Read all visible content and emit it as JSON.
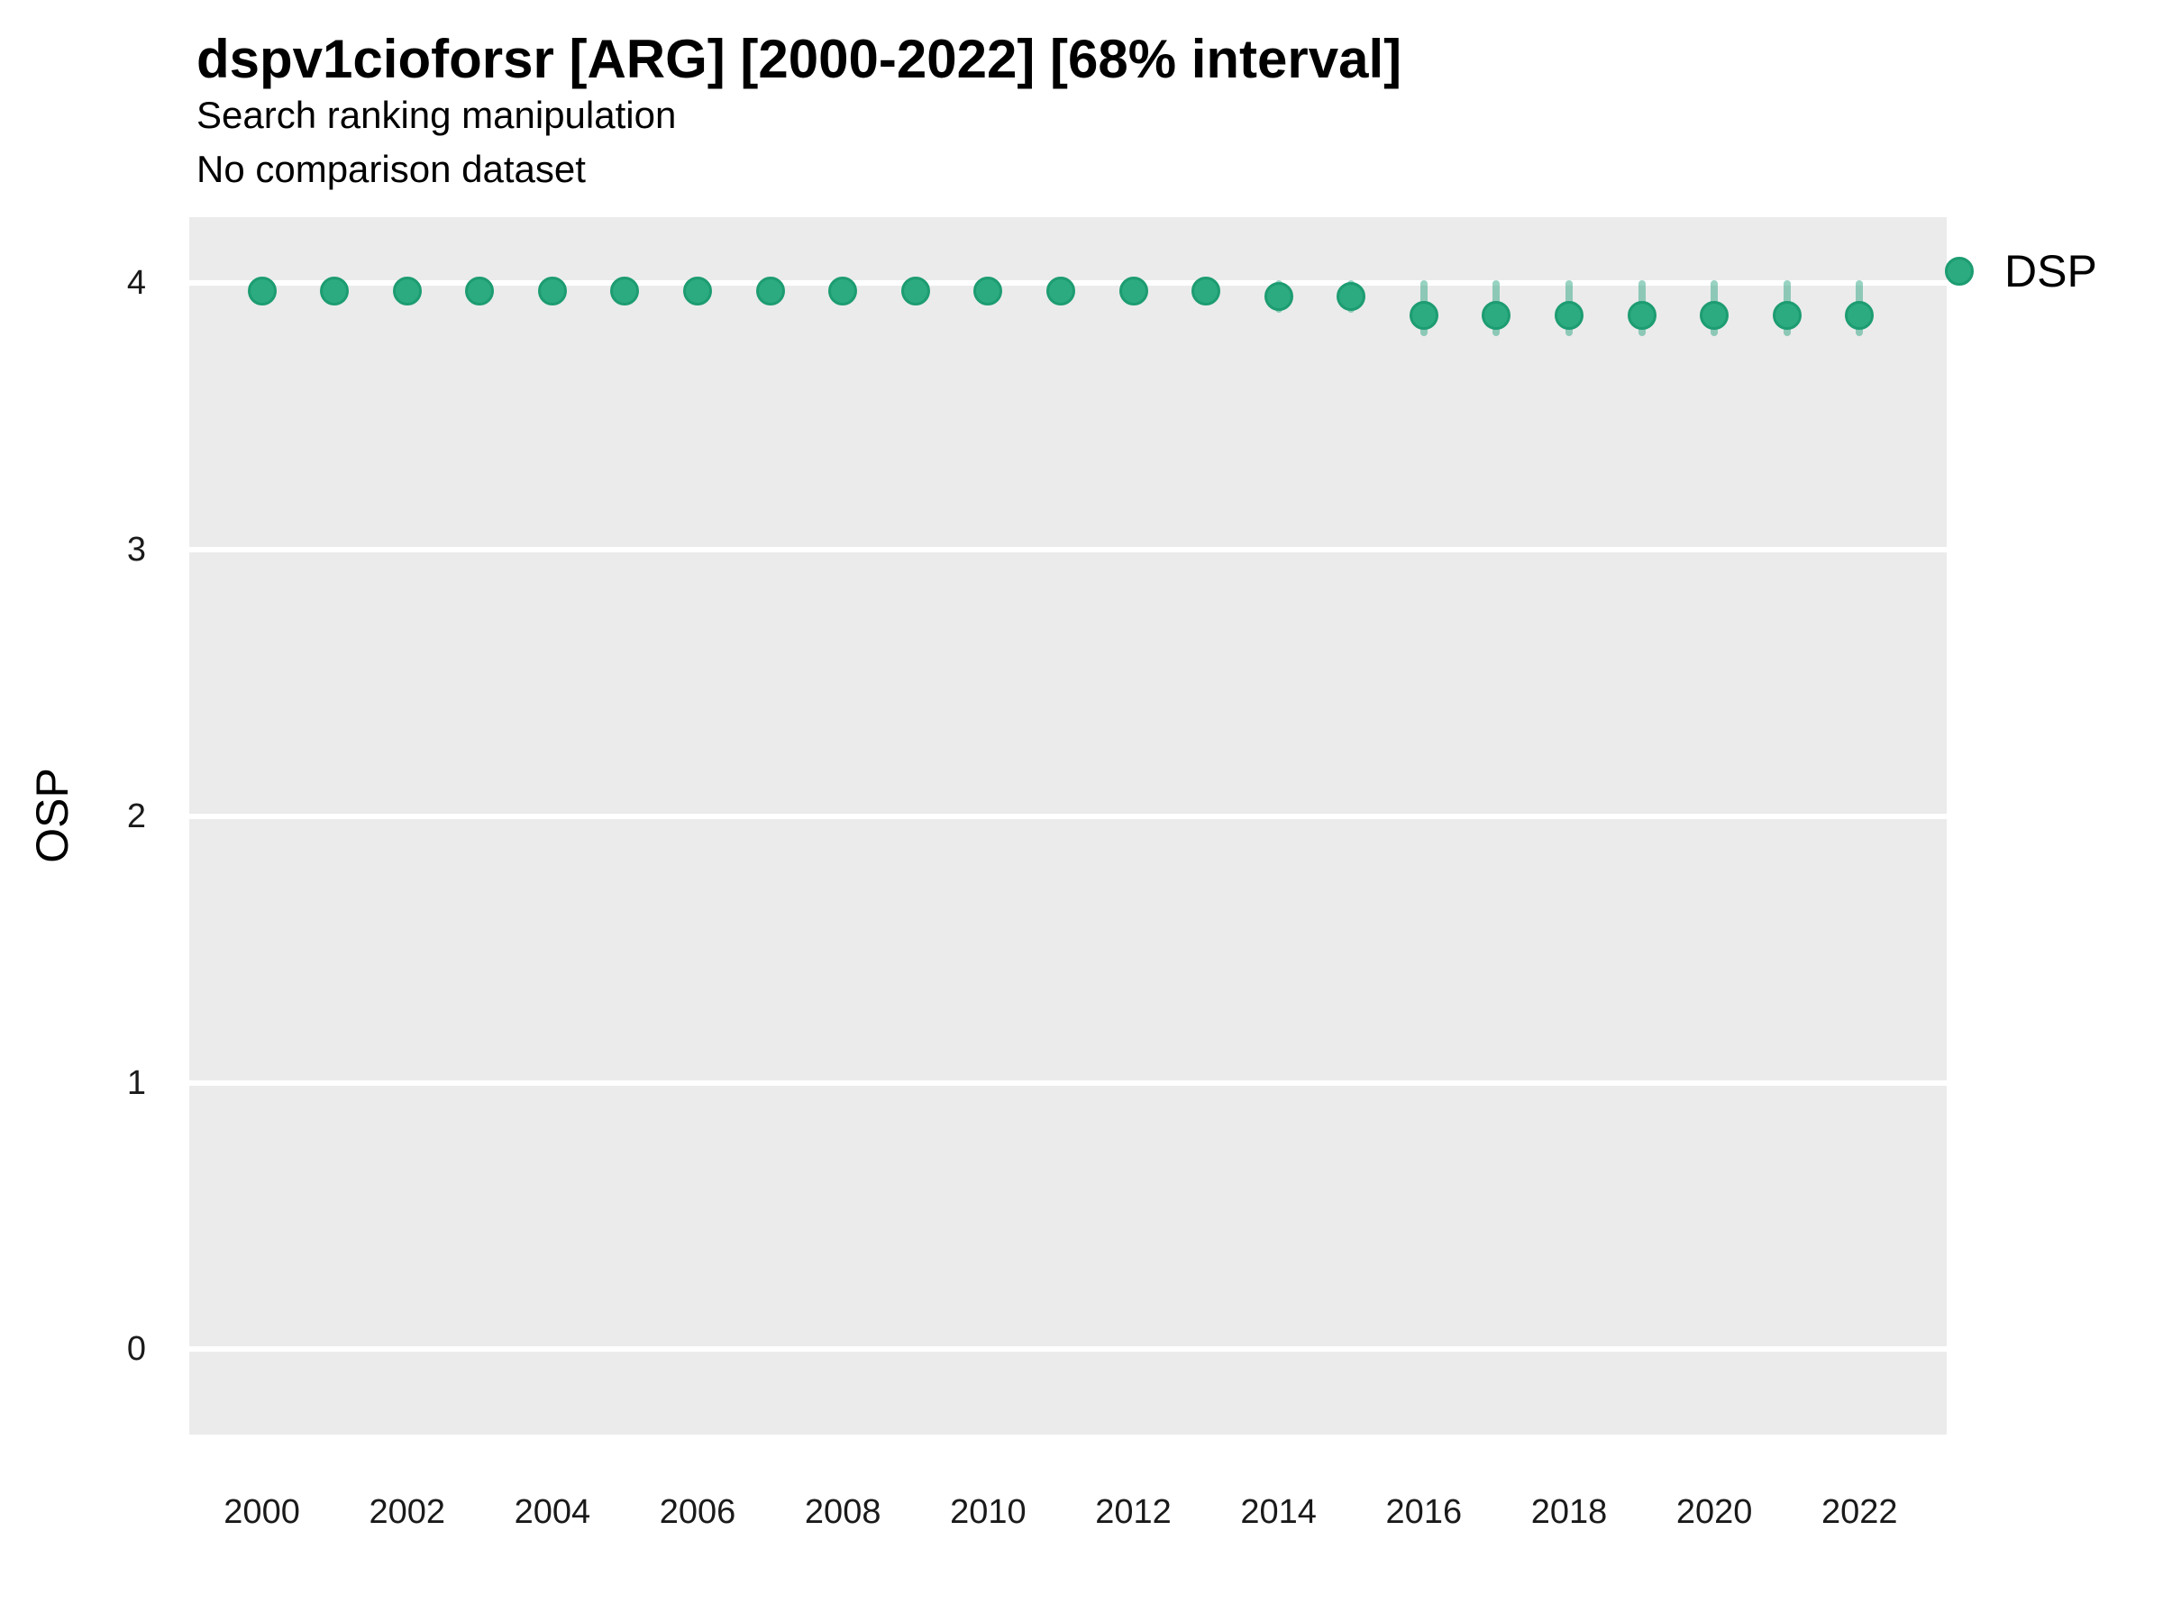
{
  "header": {
    "title": "dspv1cioforsr [ARG] [2000-2022] [68% interval]",
    "subtitle1": "Search ranking manipulation",
    "subtitle2": "No comparison dataset"
  },
  "legend": {
    "position": "right-top",
    "items": [
      {
        "label": "DSP",
        "marker": "circle-icon"
      }
    ]
  },
  "axes": {
    "ylabel": "OSP",
    "xlabel": "",
    "yticks": [
      0,
      1,
      2,
      3,
      4
    ],
    "xticks": [
      2000,
      2002,
      2004,
      2006,
      2008,
      2010,
      2012,
      2014,
      2016,
      2018,
      2020,
      2022
    ]
  },
  "colors": {
    "point_fill": "#2CAB80",
    "point_edge": "#1D9C72",
    "interval_bar": "rgba(27,158,119,0.45)",
    "panel_bg": "#EBEBEB",
    "gridline": "#FFFFFF",
    "text": "#000000"
  },
  "chart_data": {
    "type": "scatter",
    "title": "dspv1cioforsr [ARG] [2000-2022] [68% interval]",
    "subtitle": "Search ranking manipulation",
    "note": "No comparison dataset",
    "xlabel": "",
    "ylabel": "OSP",
    "interval": "68%",
    "grid": "horizontal-major-white-on-gray",
    "legend_position": "right-top",
    "xlim": [
      1999.0,
      2023.2
    ],
    "ylim": [
      -0.32,
      4.247
    ],
    "series": [
      {
        "name": "DSP",
        "x": [
          2000,
          2001,
          2002,
          2003,
          2004,
          2005,
          2006,
          2007,
          2008,
          2009,
          2010,
          2011,
          2012,
          2013,
          2014,
          2015,
          2016,
          2017,
          2018,
          2019,
          2020,
          2021,
          2022
        ],
        "y": [
          3.97,
          3.97,
          3.97,
          3.97,
          3.97,
          3.97,
          3.97,
          3.97,
          3.97,
          3.97,
          3.97,
          3.97,
          3.97,
          3.97,
          3.95,
          3.95,
          3.88,
          3.88,
          3.88,
          3.88,
          3.88,
          3.88,
          3.88
        ],
        "lo": [
          3.93,
          3.93,
          3.93,
          3.93,
          3.93,
          3.93,
          3.93,
          3.93,
          3.93,
          3.93,
          3.93,
          3.93,
          3.93,
          3.93,
          3.89,
          3.89,
          3.8,
          3.8,
          3.8,
          3.8,
          3.8,
          3.8,
          3.8
        ],
        "hi": [
          4.0,
          4.0,
          4.0,
          4.0,
          4.0,
          4.0,
          4.0,
          4.0,
          4.0,
          4.0,
          4.0,
          4.0,
          4.0,
          4.0,
          4.01,
          4.01,
          4.01,
          4.01,
          4.01,
          4.01,
          4.01,
          4.01,
          4.01
        ]
      }
    ]
  }
}
